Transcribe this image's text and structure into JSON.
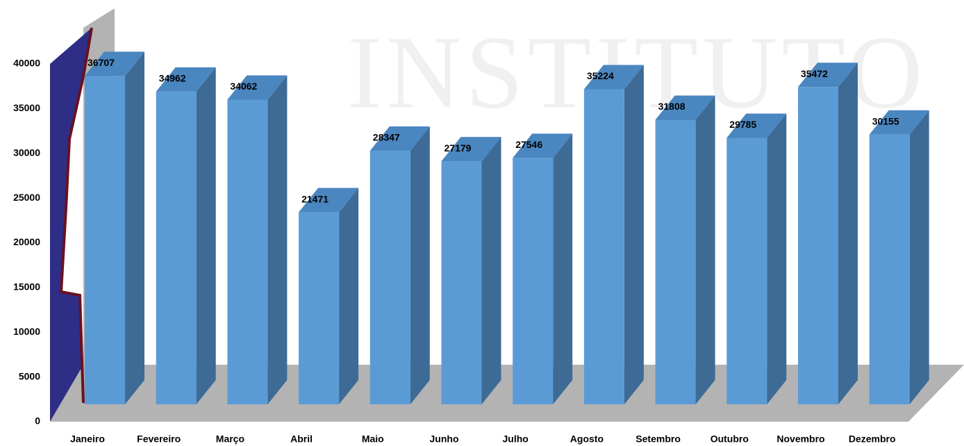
{
  "chart_data": {
    "type": "bar3d",
    "watermark": "INSTITUTO",
    "categories": [
      "Janeiro",
      "Fevereiro",
      "Março",
      "Abril",
      "Maio",
      "Junho",
      "Julho",
      "Agosto",
      "Setembro",
      "Outubro",
      "Novembro",
      "Dezembro"
    ],
    "values": [
      36707,
      34962,
      34062,
      21471,
      28347,
      27179,
      27546,
      35224,
      31808,
      29785,
      35472,
      30155
    ],
    "color": "#5b9bd5",
    "ylim": [
      0,
      40000
    ],
    "yticks": [
      0,
      5000,
      10000,
      15000,
      20000,
      25000,
      30000,
      35000,
      40000
    ]
  }
}
